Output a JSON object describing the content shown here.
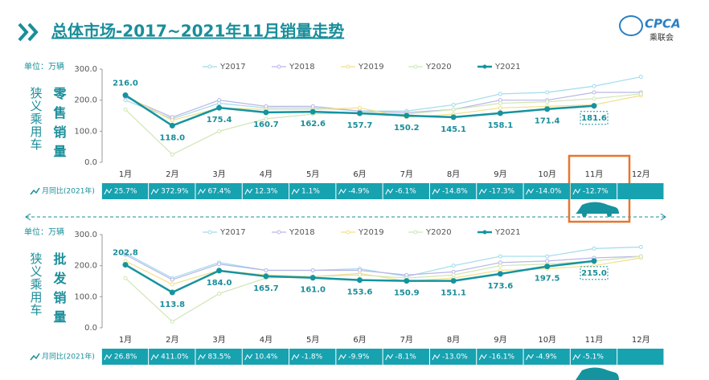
{
  "header": {
    "title": "总体市场-2017~2021年11月销量走势",
    "logo_text": "CPCA",
    "logo_sub": "乘联会"
  },
  "chart_data": [
    {
      "type": "line",
      "unit": "单位：万辆",
      "side_label": "狭义乘用车",
      "title": "零售销量",
      "categories": [
        "1月",
        "2月",
        "3月",
        "4月",
        "5月",
        "6月",
        "7月",
        "8月",
        "9月",
        "10月",
        "11月",
        "12月"
      ],
      "ylim": [
        0,
        300
      ],
      "yticks": [
        {
          "value": 0,
          "label": "0.0"
        },
        {
          "value": 100,
          "label": "100.0"
        },
        {
          "value": 200,
          "label": "200.0"
        },
        {
          "value": 300,
          "label": "300.0"
        }
      ],
      "series": [
        {
          "name": "Y2017",
          "color": "#9fdcec",
          "values": [
            200,
            140,
            190,
            175,
            175,
            165,
            165,
            185,
            220,
            225,
            245,
            275
          ]
        },
        {
          "name": "Y2018",
          "color": "#b9b6e6",
          "values": [
            210,
            145,
            200,
            180,
            180,
            165,
            160,
            170,
            200,
            200,
            225,
            225
          ]
        },
        {
          "name": "Y2019",
          "color": "#f3df86",
          "values": [
            215,
            135,
            175,
            170,
            170,
            175,
            145,
            155,
            175,
            180,
            185,
            215
          ]
        },
        {
          "name": "Y2020",
          "color": "#cfe6b4",
          "values": [
            170,
            25,
            100,
            140,
            155,
            160,
            155,
            170,
            190,
            195,
            205,
            220
          ]
        },
        {
          "name": "Y2021",
          "color": "#15939f",
          "values": [
            216,
            118,
            175.4,
            160.7,
            162.6,
            157.7,
            150.2,
            145.1,
            158.1,
            171.4,
            181.6,
            null
          ],
          "value_labels": [
            "216.0",
            "118.0",
            "175.4",
            "160.7",
            "162.6",
            "157.7",
            "150.2",
            "145.1",
            "158.1",
            "171.4",
            "181.6",
            null
          ]
        }
      ],
      "yoy": {
        "label": "月同比(2021年)",
        "values": [
          "25.7%",
          "372.9%",
          "67.4%",
          "12.3%",
          "1.1%",
          "-4.9%",
          "-6.1%",
          "-14.8%",
          "-17.3%",
          "-14.0%",
          "-12.7%"
        ]
      }
    },
    {
      "type": "line",
      "unit": "单位：万辆",
      "side_label": "狭义乘用车",
      "title": "批发销量",
      "categories": [
        "1月",
        "2月",
        "3月",
        "4月",
        "5月",
        "6月",
        "7月",
        "8月",
        "9月",
        "10月",
        "11月",
        "12月"
      ],
      "ylim": [
        0,
        300
      ],
      "yticks": [
        {
          "value": 0,
          "label": "0.0"
        },
        {
          "value": 100,
          "label": "100.0"
        },
        {
          "value": 200,
          "label": "200.0"
        },
        {
          "value": 300,
          "label": "300.0"
        }
      ],
      "series": [
        {
          "name": "Y2017",
          "color": "#9fdcec",
          "values": [
            240,
            160,
            210,
            185,
            185,
            190,
            165,
            200,
            230,
            230,
            255,
            260
          ]
        },
        {
          "name": "Y2018",
          "color": "#b9b6e6",
          "values": [
            235,
            155,
            205,
            185,
            185,
            185,
            170,
            180,
            210,
            215,
            225,
            230
          ]
        },
        {
          "name": "Y2019",
          "color": "#f3df86",
          "values": [
            215,
            140,
            185,
            170,
            165,
            175,
            150,
            160,
            185,
            190,
            200,
            225
          ]
        },
        {
          "name": "Y2020",
          "color": "#cfe6b4",
          "values": [
            160,
            20,
            110,
            160,
            165,
            170,
            160,
            170,
            200,
            205,
            215,
            230
          ]
        },
        {
          "name": "Y2021",
          "color": "#15939f",
          "values": [
            202.8,
            113.8,
            184,
            165.7,
            161,
            153.6,
            150.9,
            151.1,
            173.6,
            197.5,
            215,
            null
          ],
          "value_labels": [
            "202.8",
            "113.8",
            "184.0",
            "165.7",
            "161.0",
            "153.6",
            "150.9",
            "151.1",
            "173.6",
            "197.5",
            "215.0",
            null
          ]
        }
      ],
      "yoy": {
        "label": "月同比(2021年)",
        "values": [
          "26.8%",
          "411.0%",
          "83.5%",
          "10.4%",
          "-1.8%",
          "-9.9%",
          "-8.1%",
          "-13.0%",
          "-16.1%",
          "-4.9%",
          "-5.1%"
        ]
      }
    }
  ]
}
